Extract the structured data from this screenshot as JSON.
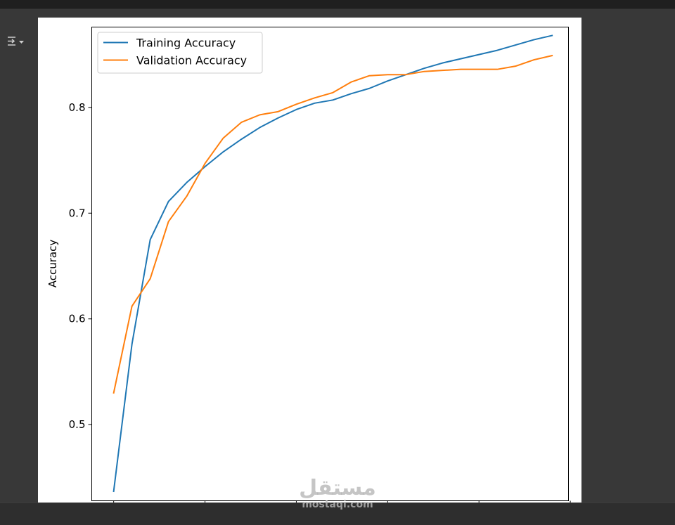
{
  "output_toggle": {
    "icon": "output-toggle-icon"
  },
  "watermark": {
    "logo": "مستقل",
    "text": "mostaqi.com"
  },
  "chart_data": {
    "type": "line",
    "title": "",
    "xlabel": "",
    "ylabel": "Accuracy",
    "x": [
      0,
      1,
      2,
      3,
      4,
      5,
      6,
      7,
      8,
      9,
      10,
      11,
      12,
      13,
      14,
      15,
      16,
      17,
      18,
      19,
      20,
      21,
      22,
      23,
      24
    ],
    "xlim": [
      -1.2,
      24.9
    ],
    "ylim": [
      0.428,
      0.876
    ],
    "yticks": [
      0.5,
      0.6,
      0.7,
      0.8
    ],
    "ytick_labels": [
      "0.5",
      "0.6",
      "0.7",
      "0.8"
    ],
    "xticks": [
      0,
      5,
      10,
      15,
      20,
      25
    ],
    "xtick_labels": [
      "",
      "",
      "",
      "",
      "",
      ""
    ],
    "grid": false,
    "legend_position": "upper-left",
    "series": [
      {
        "name": "Training Accuracy",
        "color": "#1f77b4",
        "values": [
          0.437,
          0.576,
          0.675,
          0.711,
          0.729,
          0.744,
          0.758,
          0.77,
          0.781,
          0.79,
          0.798,
          0.804,
          0.807,
          0.813,
          0.818,
          0.825,
          0.831,
          0.837,
          0.842,
          0.846,
          0.85,
          0.854,
          0.859,
          0.864,
          0.868
        ]
      },
      {
        "name": "Validation Accuracy",
        "color": "#ff7f0e",
        "values": [
          0.53,
          0.612,
          0.638,
          0.692,
          0.716,
          0.747,
          0.771,
          0.786,
          0.793,
          0.796,
          0.803,
          0.809,
          0.814,
          0.824,
          0.83,
          0.831,
          0.831,
          0.834,
          0.835,
          0.836,
          0.836,
          0.836,
          0.839,
          0.845,
          0.849
        ]
      }
    ]
  }
}
